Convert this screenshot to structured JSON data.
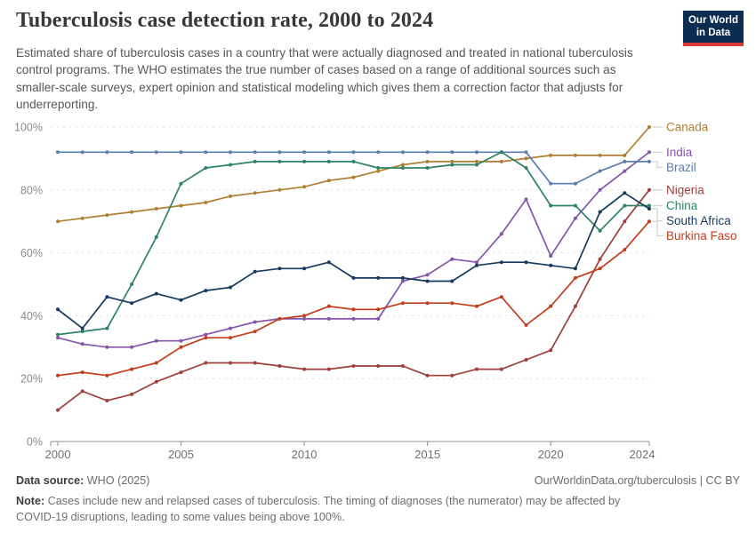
{
  "header": {
    "title": "Tuberculosis case detection rate, 2000 to 2024",
    "logo": {
      "line1": "Our World",
      "line2": "in Data",
      "bg_color": "#0c2d52",
      "bar_color": "#dc3832"
    }
  },
  "subtitle": "Estimated share of tuberculosis cases in a country that were actually diagnosed and treated in national tuberculosis control programs. The WHO estimates the true number of cases based on a range of additional sources such as smaller-scale surveys, expert opinion and statistical modeling which gives them a correction factor that adjusts for underreporting.",
  "chart_data": {
    "type": "line",
    "title": "Tuberculosis case detection rate, 2000 to 2024",
    "xlabel": "",
    "ylabel": "",
    "x": [
      2000,
      2001,
      2002,
      2003,
      2004,
      2005,
      2006,
      2007,
      2008,
      2009,
      2010,
      2011,
      2012,
      2013,
      2014,
      2015,
      2016,
      2017,
      2018,
      2019,
      2020,
      2021,
      2022,
      2023,
      2024
    ],
    "x_tick_labels": [
      2000,
      2005,
      2010,
      2015,
      2020,
      2024
    ],
    "y_ticks": [
      0,
      20,
      40,
      60,
      80,
      100
    ],
    "y_tick_suffix": "%",
    "ylim": [
      0,
      104
    ],
    "grid": "horizontal-dashed",
    "legend_position": "right",
    "series": [
      {
        "name": "Canada",
        "color": "#b17f33",
        "values": [
          70,
          71,
          72,
          73,
          74,
          75,
          76,
          78,
          79,
          80,
          81,
          83,
          84,
          86,
          88,
          89,
          89,
          89,
          89,
          90,
          91,
          91,
          91,
          91,
          100
        ]
      },
      {
        "name": "India",
        "color": "#8456ac",
        "values": [
          33,
          31,
          30,
          30,
          32,
          32,
          34,
          36,
          38,
          39,
          39,
          39,
          39,
          39,
          51,
          53,
          58,
          57,
          66,
          77,
          59,
          71,
          80,
          86,
          92
        ]
      },
      {
        "name": "Brazil",
        "color": "#5b7eb0",
        "values": [
          92,
          92,
          92,
          92,
          92,
          92,
          92,
          92,
          92,
          92,
          92,
          92,
          92,
          92,
          92,
          92,
          92,
          92,
          92,
          92,
          82,
          82,
          86,
          89,
          89
        ]
      },
      {
        "name": "Nigeria",
        "color": "#a03e3b",
        "values": [
          10,
          16,
          13,
          15,
          19,
          22,
          25,
          25,
          25,
          24,
          23,
          23,
          24,
          24,
          24,
          21,
          21,
          23,
          23,
          26,
          29,
          43,
          58,
          70,
          80
        ]
      },
      {
        "name": "China",
        "color": "#2c8465",
        "values": [
          34,
          35,
          36,
          50,
          65,
          82,
          87,
          88,
          89,
          89,
          89,
          89,
          89,
          87,
          87,
          87,
          88,
          88,
          92,
          87,
          75,
          75,
          67,
          75,
          75
        ]
      },
      {
        "name": "South Africa",
        "color": "#15395f",
        "values": [
          42,
          36,
          46,
          44,
          47,
          45,
          48,
          49,
          54,
          55,
          55,
          57,
          52,
          52,
          52,
          51,
          51,
          56,
          57,
          57,
          56,
          55,
          73,
          79,
          74
        ]
      },
      {
        "name": "Burkina Faso",
        "color": "#c33d19",
        "values": [
          21,
          22,
          21,
          23,
          25,
          30,
          33,
          33,
          35,
          39,
          40,
          43,
          42,
          42,
          44,
          44,
          44,
          43,
          46,
          37,
          43,
          52,
          55,
          61,
          70
        ]
      }
    ]
  },
  "footer": {
    "source_label": "Data source:",
    "source_value": " WHO (2025)",
    "rights": "OurWorldinData.org/tuberculosis | CC BY",
    "note_label": "Note:",
    "note_value": " Cases include new and relapsed cases of tuberculosis. The timing of diagnoses (the numerator) may be affected by COVID-19 disruptions, leading to some values being above 100%."
  }
}
